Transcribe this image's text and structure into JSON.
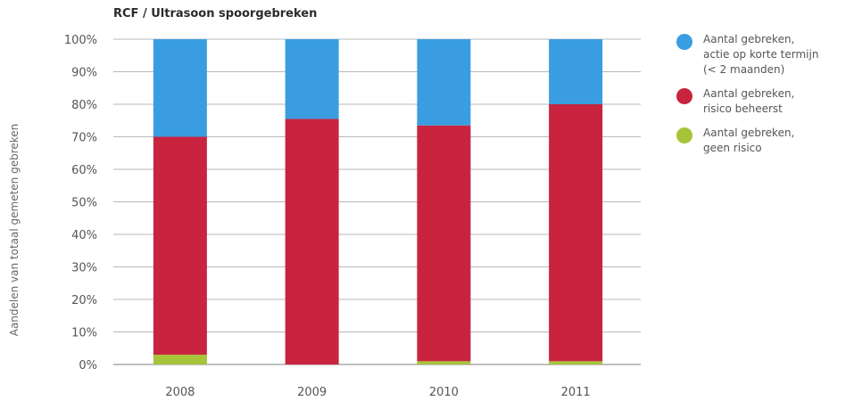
{
  "chart_data": {
    "type": "bar",
    "stacked": true,
    "title": "RCF / Ultrasoon spoorgebreken",
    "ylabel": "Aandelen van totaal gemeten gebreken",
    "xlabel": "",
    "categories": [
      "2008",
      "2009",
      "2010",
      "2011"
    ],
    "ylim": [
      0,
      100
    ],
    "yticks": [
      "0%",
      "10%",
      "20%",
      "30%",
      "40%",
      "50%",
      "60%",
      "70%",
      "80%",
      "90%",
      "100%"
    ],
    "grid": true,
    "legend_position": "right",
    "series": [
      {
        "name": "Aantal gebreken,\ngeen risico",
        "color": "#a6c43a",
        "values": [
          3,
          0,
          1,
          1
        ]
      },
      {
        "name": "Aantal gebreken,\nrisico beheerst",
        "color": "#c8243f",
        "values": [
          67,
          75.5,
          72.5,
          79
        ]
      },
      {
        "name": "Aantal gebreken,\nactie op korte termijn\n(< 2 maanden)",
        "color": "#3a9de2",
        "values": [
          30,
          24.5,
          26.5,
          20
        ]
      }
    ],
    "legend_order": [
      2,
      1,
      0
    ]
  }
}
